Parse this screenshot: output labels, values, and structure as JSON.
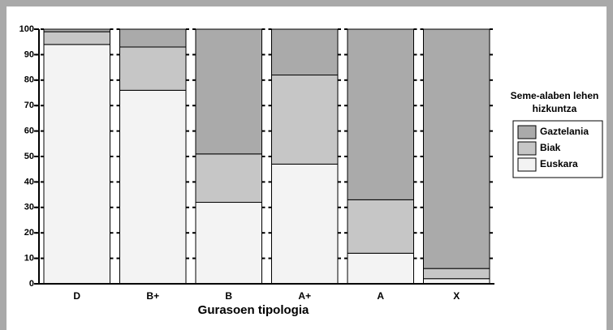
{
  "chart_data": {
    "type": "stacked_bar",
    "categories": [
      "D",
      "B+",
      "B",
      "A+",
      "A",
      "X"
    ],
    "series": [
      {
        "name": "Euskara",
        "color": "#f3f3f3",
        "values": [
          94,
          76,
          32,
          47,
          12,
          2
        ]
      },
      {
        "name": "Biak",
        "color": "#c6c6c6",
        "values": [
          5,
          17,
          19,
          35,
          21,
          4
        ]
      },
      {
        "name": "Gaztelania",
        "color": "#aaaaaa",
        "values": [
          1,
          7,
          49,
          18,
          67,
          94
        ]
      }
    ],
    "xlabel": "Gurasoen tipologia",
    "legend_title": "Seme-alaben lehen hizkuntza",
    "ylim": [
      0,
      100
    ],
    "yticks": [
      0,
      10,
      20,
      30,
      40,
      50,
      60,
      70,
      80,
      90,
      100
    ],
    "legend": "right"
  }
}
